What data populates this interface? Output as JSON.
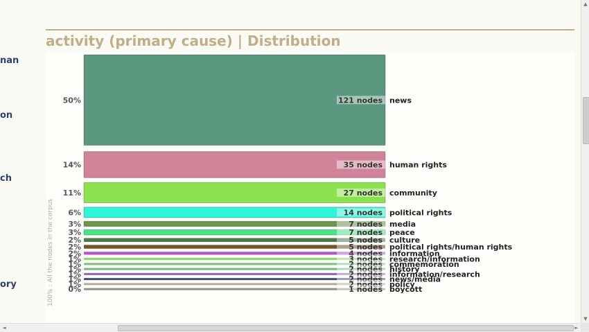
{
  "left_fragments": [
    "nan",
    "on",
    "ch",
    "ory"
  ],
  "heading": "activity (primary cause) | Distribution",
  "vertical_label": "100% : All the nodes in the corpus",
  "scrollbars": {
    "up": "▲",
    "down": "▼",
    "left": "◄",
    "right": "►",
    "grip": "|||"
  },
  "chart_data": {
    "type": "bar",
    "orientation": "horizontal",
    "unit": "nodes",
    "categories": [
      "news",
      "human rights",
      "community",
      "political rights",
      "media",
      "peace",
      "culture",
      "political rights/human rights",
      "information",
      "research/information",
      "commemoration",
      "history",
      "information/research",
      "news/media",
      "policy",
      "boycott"
    ],
    "values": [
      121,
      35,
      27,
      14,
      7,
      7,
      5,
      5,
      4,
      3,
      2,
      2,
      2,
      2,
      2,
      1
    ],
    "percent_labels": [
      "50%",
      "14%",
      "11%",
      "6%",
      "3%",
      "3%",
      "2%",
      "2%",
      "2%",
      "1%",
      "1%",
      "1%",
      "1%",
      "1%",
      "1%",
      "0%"
    ],
    "value_labels": [
      "121 nodes",
      "35 nodes",
      "27 nodes",
      "14 nodes",
      "7 nodes",
      "7 nodes",
      "5 nodes",
      "5 nodes",
      "4 nodes",
      "3 nodes",
      "2 nodes",
      "2 nodes",
      "2 nodes",
      "2 nodes",
      "2 nodes",
      "1 nodes"
    ],
    "colors": [
      "#5c9780",
      "#cf849a",
      "#8be24e",
      "#2ef5d6",
      "#6f944c",
      "#47e684",
      "#4a7a4c",
      "#745428",
      "#b557c3",
      "#93d76a",
      "#7bc07e",
      "#74b882",
      "#8d64b8",
      "#3b4d78",
      "#b9a992",
      "#8e8e8e"
    ]
  }
}
